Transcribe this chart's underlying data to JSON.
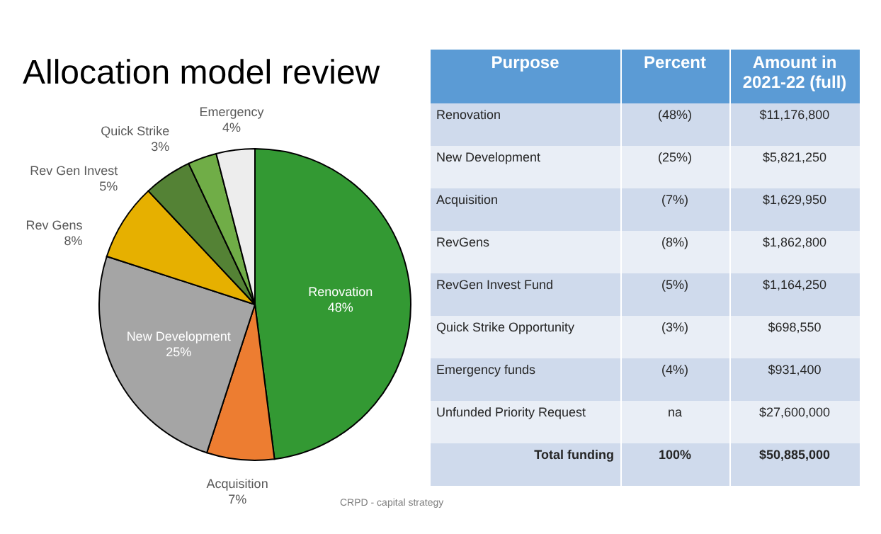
{
  "chart_data": [
    {
      "type": "pie",
      "title": "Allocation model review",
      "categories": [
        "Renovation",
        "Acquisition",
        "New Development",
        "Rev Gens",
        "Rev Gen Invest",
        "Quick Strike",
        "Emergency"
      ],
      "values": [
        48,
        7,
        25,
        8,
        5,
        3,
        4
      ],
      "colors": [
        "#339933",
        "#ed7d31",
        "#a5a5a5",
        "#e6b000",
        "#548235",
        "#70ad47",
        "#ededed"
      ],
      "value_labels": [
        "48%",
        "7%",
        "25%",
        "8%",
        "5%",
        "3%",
        "4%"
      ],
      "legend": false,
      "annotations": [
        "CRPD - capital strategy"
      ]
    },
    {
      "type": "other",
      "categories": [
        "Purpose",
        "Percent",
        "Amount in 2021-22 (full)"
      ],
      "annotations": [
        "Renovation",
        "(48%)",
        "$11,176,800",
        "New Development",
        "(25%)",
        "$5,821,250",
        "Acquisition",
        "(7%)",
        "$1,629,950",
        "RevGens",
        "(8%)",
        "$1,862,800",
        "RevGen Invest Fund",
        "(5%)",
        "$1,164,250",
        "Quick Strike Opportunity",
        "(3%)",
        "$698,550",
        "Emergency funds",
        "(4%)",
        "$931,400",
        "Unfunded Priority Request",
        "na",
        "$27,600,000",
        "Total funding",
        "100%",
        "$50,885,000"
      ]
    }
  ]
}
